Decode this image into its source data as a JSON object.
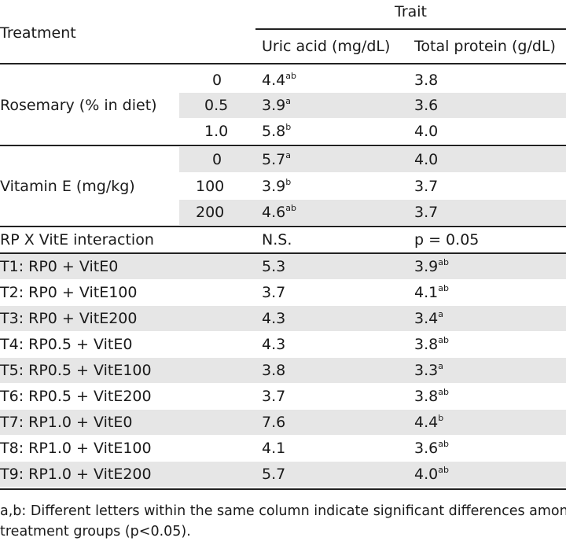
{
  "header": {
    "trait": "Trait",
    "treatment": "Treatment",
    "uric_acid": "Uric acid (mg/dL)",
    "total_protein": "Total protein (g/dL)"
  },
  "rosemary": {
    "label": "Rosemary (% in diet)",
    "rows": [
      {
        "level": "0",
        "uric": "4.4",
        "uric_sup": "ab",
        "protein": "3.8",
        "protein_sup": ""
      },
      {
        "level": "0.5",
        "uric": "3.9",
        "uric_sup": "a",
        "protein": "3.6",
        "protein_sup": ""
      },
      {
        "level": "1.0",
        "uric": "5.8",
        "uric_sup": "b",
        "protein": "4.0",
        "protein_sup": ""
      }
    ]
  },
  "vitamin_e": {
    "label": "Vitamin E (mg/kg)",
    "rows": [
      {
        "level": "0",
        "uric": "5.7",
        "uric_sup": "a",
        "protein": "4.0",
        "protein_sup": ""
      },
      {
        "level": "100",
        "uric": "3.9",
        "uric_sup": "b",
        "protein": "3.7",
        "protein_sup": ""
      },
      {
        "level": "200",
        "uric": "4.6",
        "uric_sup": "ab",
        "protein": "3.7",
        "protein_sup": ""
      }
    ]
  },
  "interaction": {
    "label": "RP X VitE interaction",
    "uric": "N.S.",
    "protein": "p = 0.05"
  },
  "groups": [
    {
      "label": "T1: RP0 + VitE0",
      "uric": "5.3",
      "protein": "3.9",
      "protein_sup": "ab"
    },
    {
      "label": "T2: RP0 + VitE100",
      "uric": "3.7",
      "protein": "4.1",
      "protein_sup": "ab"
    },
    {
      "label": "T3: RP0 + VitE200",
      "uric": "4.3",
      "protein": "3.4",
      "protein_sup": "a"
    },
    {
      "label": "T4: RP0.5 + VitE0",
      "uric": "4.3",
      "protein": "3.8",
      "protein_sup": "ab"
    },
    {
      "label": "T5: RP0.5 + VitE100",
      "uric": "3.8",
      "protein": "3.3",
      "protein_sup": "a"
    },
    {
      "label": "T6: RP0.5 + VitE200",
      "uric": "3.7",
      "protein": "3.8",
      "protein_sup": "ab"
    },
    {
      "label": "T7: RP1.0 + VitE0",
      "uric": "7.6",
      "protein": "4.4",
      "protein_sup": "b"
    },
    {
      "label": "T8: RP1.0 + VitE100",
      "uric": "4.1",
      "protein": "3.6",
      "protein_sup": "ab"
    },
    {
      "label": "T9: RP1.0 + VitE200",
      "uric": "5.7",
      "protein": "4.0",
      "protein_sup": "ab"
    }
  ],
  "footnote": {
    "line1": "a,b: Different letters within the same column indicate significant differences among",
    "line2": "treatment groups (p<0.05)."
  }
}
